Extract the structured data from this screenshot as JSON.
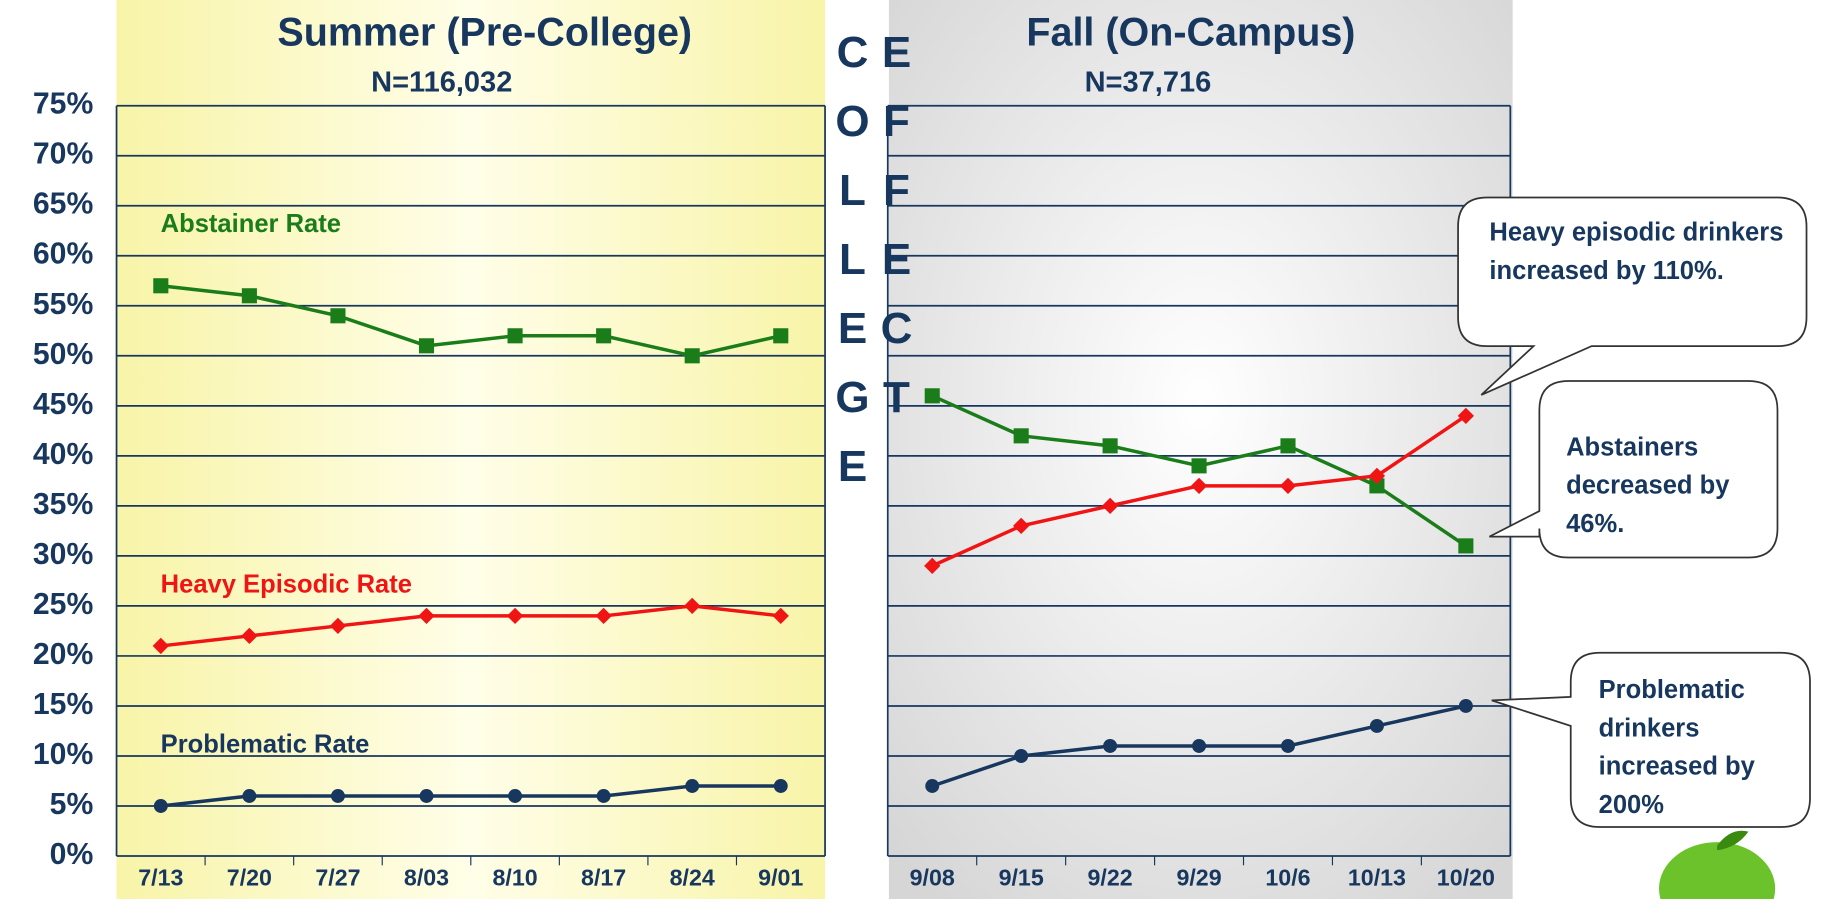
{
  "chart_data": [
    {
      "type": "line",
      "title": "Summer (Pre-College)",
      "subtitle": "N=116,032",
      "categories": [
        "7/13",
        "7/20",
        "7/27",
        "8/03",
        "8/10",
        "8/17",
        "8/24",
        "9/01"
      ],
      "ylim": [
        0,
        75
      ],
      "yticks": [
        {
          "value": 0,
          "label": "0%"
        },
        {
          "value": 5,
          "label": "5%"
        },
        {
          "value": 10,
          "label": "10%"
        },
        {
          "value": 15,
          "label": "15%"
        },
        {
          "value": 20,
          "label": "20%"
        },
        {
          "value": 25,
          "label": "25%"
        },
        {
          "value": 30,
          "label": "30%"
        },
        {
          "value": 35,
          "label": "35%"
        },
        {
          "value": 40,
          "label": "40%"
        },
        {
          "value": 45,
          "label": "45%"
        },
        {
          "value": 50,
          "label": "50%"
        },
        {
          "value": 55,
          "label": "55%"
        },
        {
          "value": 60,
          "label": "60%"
        },
        {
          "value": 65,
          "label": "65%"
        },
        {
          "value": 70,
          "label": "70%"
        },
        {
          "value": 75,
          "label": "75%"
        }
      ],
      "grid": true,
      "series": [
        {
          "name": "Abstainer Rate",
          "color": "#1a7d1a",
          "marker": "square",
          "values": [
            57,
            56,
            54,
            51,
            52,
            52,
            50,
            52
          ]
        },
        {
          "name": "Heavy Episodic Rate",
          "color": "#f01414",
          "marker": "diamond",
          "values": [
            21,
            22,
            23,
            24,
            24,
            24,
            25,
            24
          ]
        },
        {
          "name": "Problematic Rate",
          "color": "#17375e",
          "marker": "circle",
          "values": [
            5,
            6,
            6,
            6,
            6,
            6,
            7,
            7
          ]
        }
      ]
    },
    {
      "type": "line",
      "title": "Fall (On-Campus)",
      "subtitle": "N=37,716",
      "categories": [
        "9/08",
        "9/15",
        "9/22",
        "9/29",
        "10/6",
        "10/13",
        "10/20"
      ],
      "ylim": [
        0,
        75
      ],
      "yticks": [
        0,
        5,
        10,
        15,
        20,
        25,
        30,
        35,
        40,
        45,
        50,
        55,
        60,
        65,
        70,
        75
      ],
      "grid": true,
      "series": [
        {
          "color": "#1a7d1a",
          "marker": "square",
          "values": [
            46,
            42,
            41,
            39,
            41,
            37,
            31
          ]
        },
        {
          "color": "#f01414",
          "marker": "diamond",
          "values": [
            29,
            33,
            35,
            37,
            37,
            38,
            44
          ]
        },
        {
          "color": "#17375e",
          "marker": "circle",
          "values": [
            7,
            10,
            11,
            11,
            11,
            13,
            15
          ]
        }
      ],
      "annotations": [
        "Heavy episodic drinkers increased by 110%.",
        "Abstainers decreased by 46%.",
        "Problematic drinkers increased by 200%"
      ]
    }
  ],
  "divider_text": "COLLEGE EFFECT"
}
